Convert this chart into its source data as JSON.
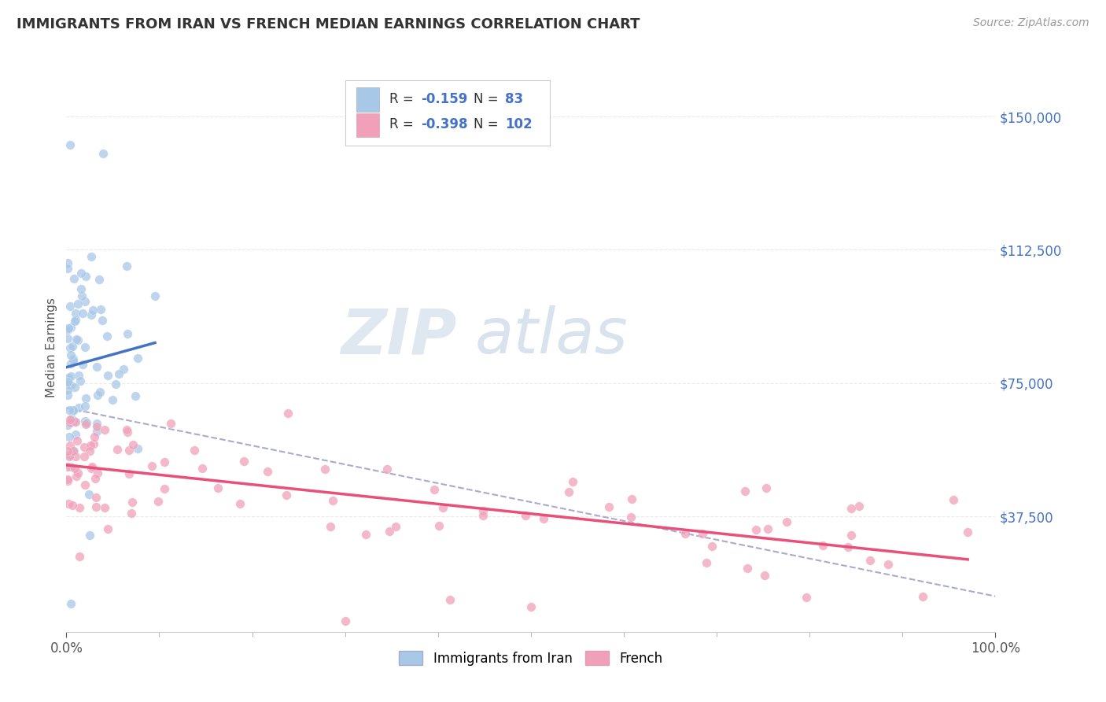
{
  "title": "IMMIGRANTS FROM IRAN VS FRENCH MEDIAN EARNINGS CORRELATION CHART",
  "source_text": "Source: ZipAtlas.com",
  "ylabel": "Median Earnings",
  "xlim": [
    0.0,
    1.0
  ],
  "ylim": [
    5000,
    165000
  ],
  "yticks": [
    37500,
    75000,
    112500,
    150000
  ],
  "ytick_labels": [
    "$37,500",
    "$75,000",
    "$112,500",
    "$150,000"
  ],
  "xtick_vals": [
    0.0,
    1.0
  ],
  "xtick_labels": [
    "0.0%",
    "100.0%"
  ],
  "r_iran": -0.159,
  "n_iran": 83,
  "r_french": -0.398,
  "n_french": 102,
  "color_iran": "#A8C8E8",
  "color_french": "#F0A0B8",
  "color_iran_line": "#4472C4",
  "color_french_line": "#E8507A",
  "color_dashed": "#AAAACC",
  "watermark_zip": "ZIP",
  "watermark_atlas": "atlas",
  "watermark_color_zip": "#C0CCDD",
  "watermark_color_atlas": "#B0C8D8",
  "background_color": "#FFFFFF",
  "grid_color": "#E8E8E8",
  "iran_seed": 42,
  "french_seed": 99
}
